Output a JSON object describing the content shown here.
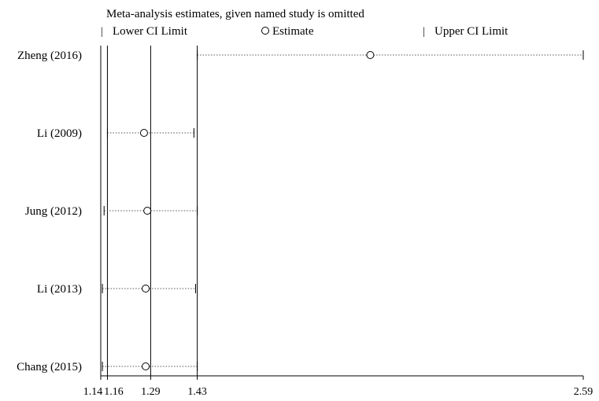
{
  "chart_data": {
    "type": "scatter",
    "title": "Meta-analysis estimates, given named study is omitted",
    "legend": {
      "placement": "top",
      "entries": [
        {
          "symbol": "|",
          "label": "Lower CI Limit"
        },
        {
          "symbol": "○",
          "label": "Estimate"
        },
        {
          "symbol": "|",
          "label": "Upper CI Limit"
        }
      ]
    },
    "studies": [
      {
        "name": "Zheng (2016)",
        "lower": 1.43,
        "estimate": 1.95,
        "upper": 2.59
      },
      {
        "name": "Li (2009)",
        "lower": 1.16,
        "estimate": 1.27,
        "upper": 1.42
      },
      {
        "name": "Jung (2012)",
        "lower": 1.15,
        "estimate": 1.28,
        "upper": 1.43
      },
      {
        "name": "Li (2013)",
        "lower": 1.145,
        "estimate": 1.275,
        "upper": 1.425
      },
      {
        "name": "Chang (2015)",
        "lower": 1.145,
        "estimate": 1.275,
        "upper": 1.43
      }
    ],
    "x_ticks": [
      {
        "value": 1.14,
        "label": "1.14"
      },
      {
        "value": 1.16,
        "label": "1.16"
      },
      {
        "value": 1.29,
        "label": "1.29"
      },
      {
        "value": 1.43,
        "label": "1.43"
      },
      {
        "value": 2.59,
        "label": "2.59"
      }
    ],
    "reference_lines": [
      1.14,
      1.16,
      1.29,
      1.43
    ],
    "xlim": [
      1.14,
      2.59
    ],
    "grid": false
  }
}
